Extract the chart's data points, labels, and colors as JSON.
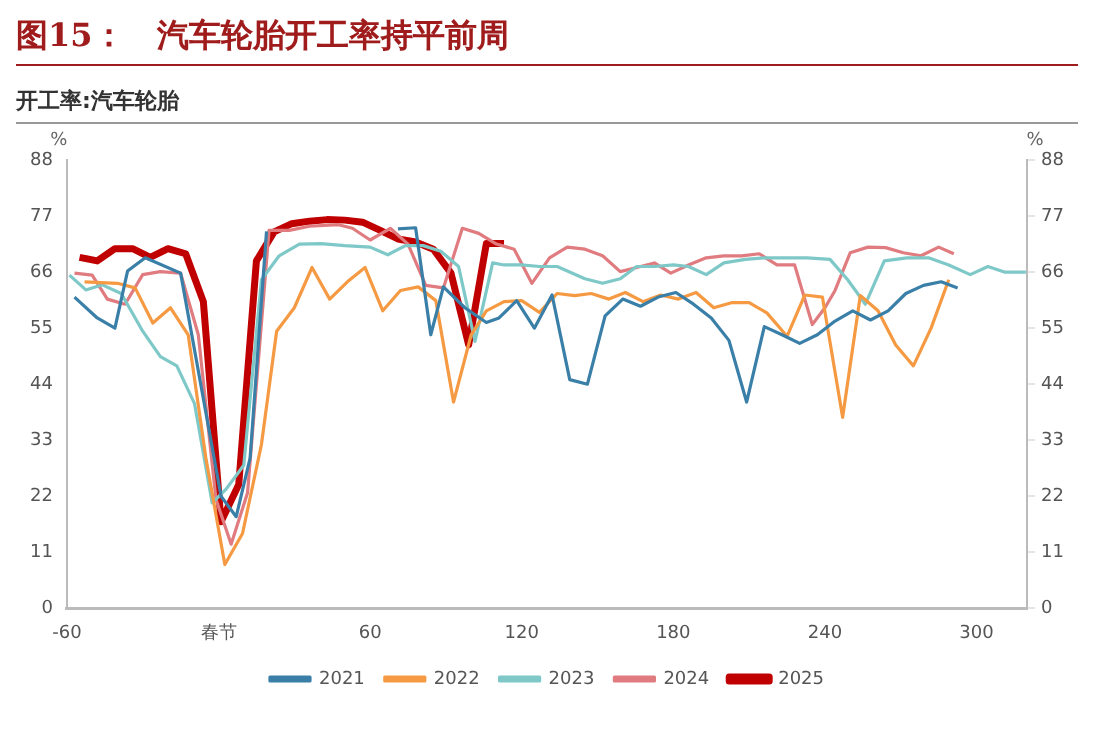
{
  "chart_data": {
    "type": "line",
    "title": "图15：　汽车轮胎开工率持平前周",
    "subtitle": "开工率:汽车轮胎",
    "ylabel": "%",
    "y2label": "%",
    "xlim": [
      -60,
      320
    ],
    "xticks": [
      -60,
      {
        "value": 0,
        "label": "春节"
      },
      60,
      120,
      180,
      240,
      300
    ],
    "ylim": [
      0,
      88
    ],
    "yticks": [
      0,
      11,
      22,
      33,
      44,
      55,
      66,
      77,
      88
    ],
    "y2lim": [
      0,
      88
    ],
    "y2ticks": [
      0,
      11,
      22,
      33,
      44,
      55,
      66,
      77,
      88
    ],
    "grid": false,
    "legend": "bottom",
    "marker": "none",
    "line_style": "solid",
    "series": [
      {
        "name": "2021",
        "color": "#3a7fa8",
        "x": [
          -57,
          -48,
          -41,
          -36,
          -29,
          -15,
          1,
          7,
          12.5,
          19,
          45,
          71,
          78,
          84,
          89,
          97.5,
          106,
          111,
          118,
          125,
          132,
          139,
          146,
          153,
          160,
          167,
          174,
          181,
          188,
          195,
          202,
          209,
          216,
          223,
          230,
          237,
          244,
          251,
          258,
          265,
          272,
          279,
          286,
          292.5
        ],
        "values": [
          61.1,
          57,
          55,
          66.2,
          68.8,
          65.8,
          22,
          18,
          29.5,
          74,
          null,
          74.5,
          74.7,
          53.7,
          63.1,
          59,
          56.1,
          57,
          60.4,
          55,
          61.5,
          44.9,
          44,
          57.4,
          60.7,
          59.3,
          61.1,
          62,
          59.7,
          57,
          52.6,
          40.5,
          55.3,
          53.7,
          52,
          53.7,
          56.4,
          58.4,
          56.6,
          58.4,
          61.8,
          63.4,
          64.1,
          62.9
        ]
      },
      {
        "name": "2022",
        "color": "#f59a42",
        "x": [
          -53,
          -40,
          -33,
          -26,
          -19,
          -12,
          -5,
          2.5,
          9.5,
          17,
          23,
          30,
          37,
          44,
          51,
          58,
          65,
          72,
          79,
          86,
          93,
          100,
          106,
          113,
          120,
          127,
          134,
          141,
          147.5,
          154.5,
          161,
          168,
          175,
          182,
          189,
          196,
          203,
          210,
          217,
          225,
          232,
          239,
          247,
          254,
          261,
          268,
          275,
          282,
          289
        ],
        "values": [
          64.1,
          63.8,
          62.9,
          56,
          59,
          53.7,
          29.5,
          8.6,
          14.7,
          32.2,
          54.4,
          59,
          66.9,
          60.7,
          64.1,
          66.9,
          58.4,
          62.4,
          63.1,
          60.4,
          40.5,
          53.7,
          58.4,
          60.2,
          60.4,
          58.1,
          61.8,
          61.4,
          61.8,
          60.7,
          62,
          60.2,
          61.5,
          60.7,
          62,
          59,
          60,
          60,
          58,
          53.4,
          61.5,
          61.1,
          37.5,
          61.4,
          58.4,
          51.7,
          47.6,
          55,
          64.5
        ]
      },
      {
        "name": "2023",
        "color": "#7ec8c8",
        "x": [
          -59,
          -52.5,
          -46,
          -38.5,
          -30,
          -23,
          -16.5,
          -9.5,
          -2.5,
          3,
          10,
          17,
          24,
          32,
          40.5,
          50,
          60,
          67,
          74,
          81,
          88,
          95,
          101.5,
          108.5,
          113,
          120,
          127,
          134,
          145,
          152,
          159,
          165.5,
          172.5,
          180,
          186,
          193,
          200,
          208.5,
          216,
          225,
          233,
          242,
          249,
          256,
          263.5,
          272.5,
          281,
          289,
          297.5,
          304.5,
          311,
          319.5
        ],
        "values": [
          65.4,
          62.5,
          63.5,
          61.8,
          54.4,
          49.4,
          47.6,
          40.2,
          20.7,
          23.4,
          28.1,
          64.5,
          69.2,
          71.5,
          71.6,
          71.2,
          70.9,
          69.4,
          71.2,
          71.2,
          70.1,
          67.1,
          52.4,
          67.8,
          67.4,
          67.4,
          67.1,
          67.1,
          64.7,
          63.8,
          64.7,
          67.1,
          67.1,
          67.4,
          67.1,
          65.5,
          67.8,
          68.5,
          68.8,
          68.8,
          68.8,
          68.5,
          64.5,
          59.7,
          68.2,
          68.8,
          68.8,
          67.4,
          65.5,
          67.1,
          66,
          66
        ]
      },
      {
        "name": "2024",
        "color": "#e07b80",
        "x": [
          -57,
          -50,
          -44,
          -37,
          -30,
          -23,
          -15,
          -8,
          -1,
          5,
          11.5,
          20,
          28,
          36,
          47.5,
          53,
          60,
          68,
          75,
          82,
          89,
          96.5,
          103,
          110,
          117,
          124,
          131,
          138,
          145,
          152,
          159,
          165.5,
          172.5,
          179,
          186,
          193,
          200,
          207,
          214,
          221,
          228,
          235,
          240,
          244,
          250,
          257,
          264,
          271,
          278,
          285,
          291
        ],
        "values": [
          65.8,
          65.4,
          60.7,
          59.7,
          65.5,
          66.1,
          65.8,
          53.7,
          21.4,
          12.6,
          22.7,
          74.2,
          74.2,
          75,
          75.3,
          74.6,
          72.3,
          74.6,
          71.5,
          63.4,
          62.9,
          74.6,
          73.6,
          71.5,
          70.5,
          63.8,
          68.8,
          70.9,
          70.5,
          69.2,
          66.1,
          66.9,
          67.8,
          65.8,
          67.4,
          68.8,
          69.2,
          69.2,
          69.6,
          67.4,
          67.4,
          55.7,
          59,
          62.4,
          69.8,
          70.9,
          70.8,
          69.8,
          69.2,
          70.9,
          69.6
        ]
      },
      {
        "name": "2025",
        "color": "#c00000",
        "x": [
          -55,
          -48,
          -41,
          -34,
          -27,
          -20,
          -13,
          -6,
          1,
          8,
          15,
          22,
          29,
          36,
          43,
          50,
          57,
          64,
          71,
          78,
          85,
          92,
          99,
          106,
          113
        ],
        "values": [
          68.9,
          68.2,
          70.6,
          70.6,
          68.9,
          70.6,
          69.6,
          60.2,
          17,
          24.3,
          68.2,
          73.9,
          75.5,
          76,
          76.3,
          76.2,
          75.8,
          74.2,
          72.5,
          71.9,
          70.5,
          65.8,
          51.7,
          71.6,
          71.6
        ]
      }
    ]
  }
}
